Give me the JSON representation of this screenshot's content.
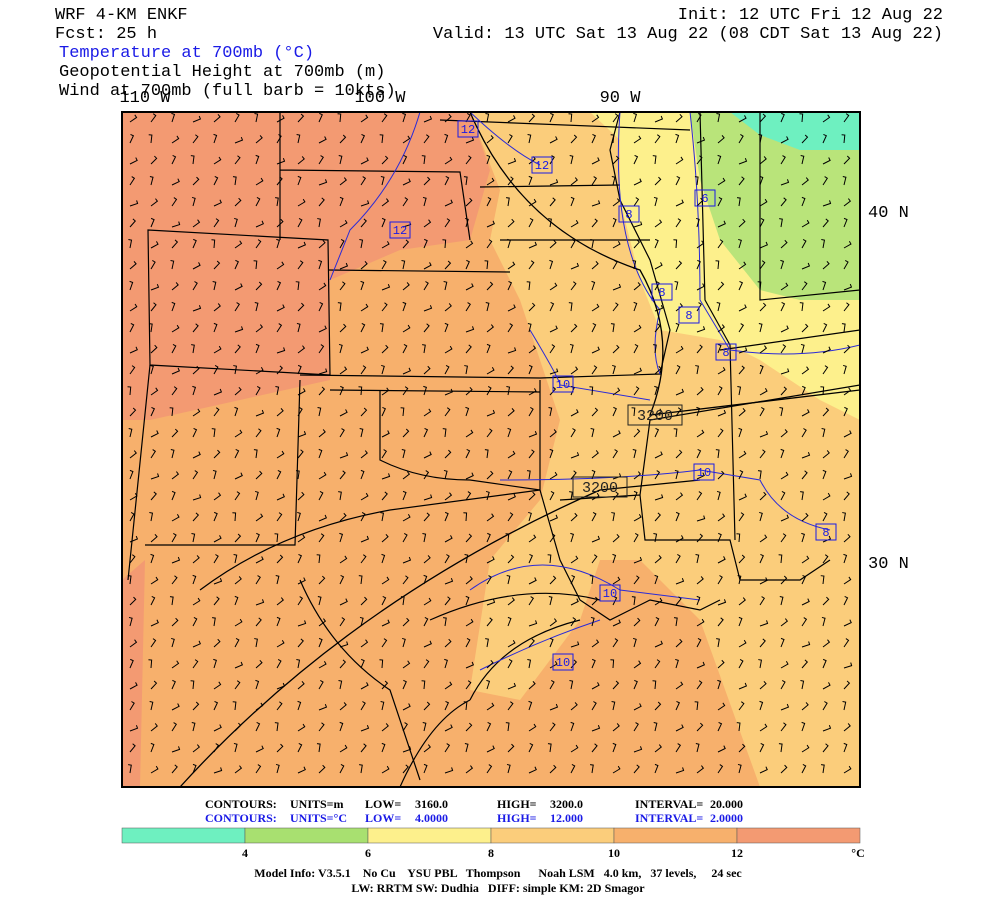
{
  "header": {
    "model": "WRF 4-KM ENKF",
    "forecast": "Fcst:   25 h",
    "init": "Init: 12 UTC Fri 12 Aug 22",
    "valid": "Valid: 13 UTC Sat 13 Aug 22 (08 CDT Sat 13 Aug 22)",
    "fields": [
      "Temperature at 700mb (°C)",
      "Geopotential Height at 700mb (m)",
      "Wind at 700mb (full barb = 10kts)"
    ]
  },
  "map": {
    "lon_labels": [
      "110 W",
      "100 W",
      "90 W"
    ],
    "lat_labels": [
      "40 N",
      "30 N"
    ],
    "temperature_contour_labels": [
      "12",
      "12",
      "12",
      "8",
      "6",
      "8",
      "8",
      "8",
      "10",
      "10",
      "8",
      "10",
      "10"
    ],
    "height_contour_labels": [
      "3200",
      "3200"
    ]
  },
  "contours_info": [
    [
      "CONTOURS:",
      "UNITS=m",
      "LOW=",
      "3160.0",
      "HIGH=",
      "3200.0",
      "INTERVAL=",
      "20.000"
    ],
    [
      "CONTOURS:",
      "UNITS=°C",
      "LOW=",
      "4.0000",
      "HIGH=",
      "12.000",
      "INTERVAL=",
      "2.0000"
    ]
  ],
  "colorbar": {
    "labels": [
      "4",
      "6",
      "8",
      "10",
      "12"
    ],
    "units": "°C"
  },
  "footer": [
    "Model Info: V3.5.1    No Cu    YSU PBL   Thompson      Noah LSM   4.0 km,   37 levels,     24 sec",
    "LW: RRTM SW: Dudhia   DIFF: simple KM: 2D Smagor"
  ]
}
